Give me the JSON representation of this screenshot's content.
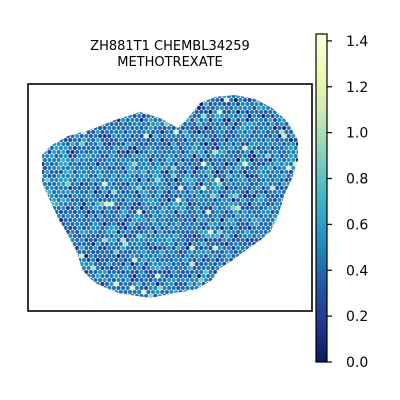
{
  "chart_data": {
    "type": "heatmap",
    "title": [
      "ZH881T1 CHEMBL34259",
      "METHOTREXATE"
    ],
    "colorbar": {
      "colormap": "YlGnBu_r",
      "vmin": 0.0,
      "vmax": 1.43,
      "ticks": [
        0.0,
        0.2,
        0.4,
        0.6,
        0.8,
        1.0,
        1.2,
        1.4
      ],
      "tick_labels": [
        "0.0",
        "0.2",
        "0.4",
        "0.6",
        "0.8",
        "1.0",
        "1.2",
        "1.4"
      ]
    },
    "spots": {
      "layout": "hexagonal spatial transcriptomics grid",
      "typical_value_range": [
        0.2,
        0.7
      ],
      "mean_value": 0.45
    },
    "xlabel": "",
    "ylabel": "",
    "grid": false
  }
}
